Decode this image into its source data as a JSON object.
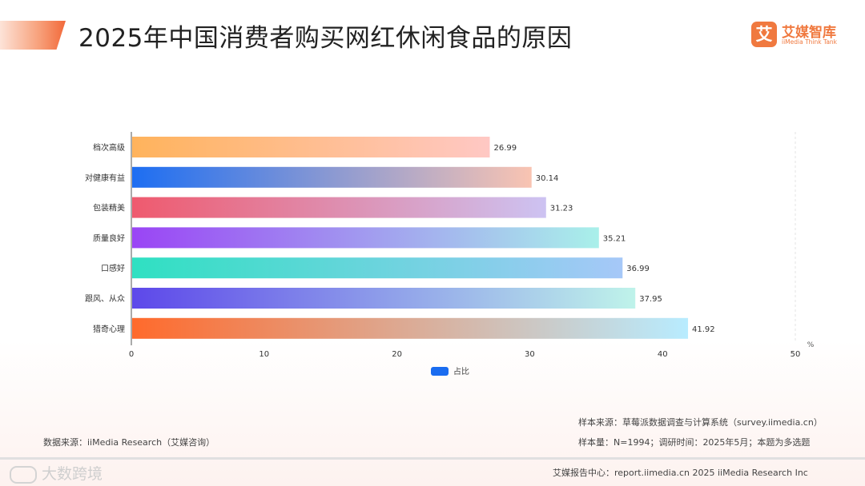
{
  "header": {
    "title": "2025年中国消费者购买网红休闲食品的原因",
    "logo_mark": "艾",
    "logo_cn": "艾媒智库",
    "logo_en": "iiMedia Think Tank"
  },
  "chart_data": {
    "type": "bar",
    "orientation": "horizontal",
    "title": "",
    "categories": [
      "档次高级",
      "对健康有益",
      "包装精美",
      "质量良好",
      "口感好",
      "跟风、从众",
      "猎奇心理"
    ],
    "series": [
      {
        "name": "占比",
        "values": [
          26.99,
          30.14,
          31.23,
          35.21,
          36.99,
          37.95,
          41.92
        ]
      }
    ],
    "x_ticks": [
      0,
      10,
      20,
      30,
      40,
      50
    ],
    "xlim": [
      0,
      50
    ],
    "x_unit": "%",
    "grid": false,
    "legend": "bottom-center",
    "bar_gradients": [
      [
        "#ffb35c",
        "#ffc8c4"
      ],
      [
        "#1d6ef2",
        "#f9c4b2"
      ],
      [
        "#ef5a6e",
        "#cdc3f2"
      ],
      [
        "#9a45f5",
        "#a9f0ea"
      ],
      [
        "#2fe0c2",
        "#a6c8f8"
      ],
      [
        "#5d48ea",
        "#bff3ea"
      ],
      [
        "#ff6a2c",
        "#b8ecff"
      ]
    ],
    "legend_color": "#1a6cf0"
  },
  "notes": {
    "source": "数据来源：iiMedia Research（艾媒咨询）",
    "sample_source": "样本来源：草莓派数据调查与计算系统（survey.iimedia.cn）",
    "sample_size": "样本量：N=1994；调研时间：2025年5月；本题为多选题"
  },
  "footer": {
    "report": "艾媒报告中心：report.iimedia.cn  2025 iiMedia Research Inc",
    "watermark": "大数跨境"
  }
}
